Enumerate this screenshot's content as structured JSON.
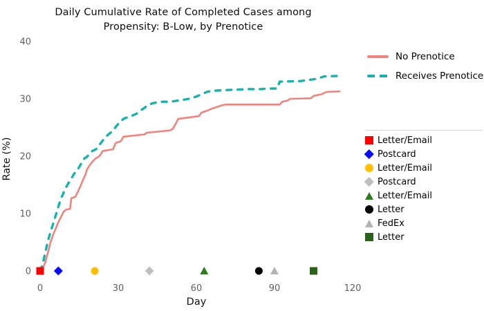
{
  "title": {
    "line1": "Daily Cumulative Rate of Completed Cases among",
    "line2": "Propensity: B-Low, by Prenotice"
  },
  "chart_data": {
    "type": "line",
    "title": "Daily Cumulative Rate of Completed Cases among Propensity: B-Low, by Prenotice",
    "xlabel": "Day",
    "ylabel": "Rate (%)",
    "xlim": [
      0,
      120
    ],
    "ylim": [
      0,
      40
    ],
    "x_ticks": [
      0,
      30,
      60,
      90,
      120
    ],
    "y_ticks": [
      0,
      10,
      20,
      30,
      40
    ],
    "grid": false,
    "legend_position": "right",
    "series": [
      {
        "name": "No Prenotice",
        "color": "#F2837C",
        "style": "solid",
        "points": [
          [
            0,
            0
          ],
          [
            1,
            0.4
          ],
          [
            2,
            1.5
          ],
          [
            3,
            3.2
          ],
          [
            4,
            5.0
          ],
          [
            5,
            6.3
          ],
          [
            6,
            7.4
          ],
          [
            7,
            8.5
          ],
          [
            8,
            9.4
          ],
          [
            9,
            10.3
          ],
          [
            10,
            10.7
          ],
          [
            11.5,
            10.8
          ],
          [
            12,
            12.7
          ],
          [
            13.5,
            12.9
          ],
          [
            14.5,
            13.8
          ],
          [
            15.5,
            14.8
          ],
          [
            16.5,
            15.9
          ],
          [
            17.5,
            16.9
          ],
          [
            18,
            17.7
          ],
          [
            19,
            18.4
          ],
          [
            20,
            19.0
          ],
          [
            21,
            19.5
          ],
          [
            22,
            19.8
          ],
          [
            23,
            20.1
          ],
          [
            24,
            20.9
          ],
          [
            28,
            21.2
          ],
          [
            29,
            22.3
          ],
          [
            31,
            22.6
          ],
          [
            32,
            23.4
          ],
          [
            40,
            23.8
          ],
          [
            41,
            24.1
          ],
          [
            50,
            24.5
          ],
          [
            51,
            24.8
          ],
          [
            52,
            25.6
          ],
          [
            53,
            26.5
          ],
          [
            61,
            27.0
          ],
          [
            62,
            27.6
          ],
          [
            64,
            27.9
          ],
          [
            66,
            28.3
          ],
          [
            68,
            28.6
          ],
          [
            70,
            28.9
          ],
          [
            71,
            29.0
          ],
          [
            92,
            29.0
          ],
          [
            93,
            29.5
          ],
          [
            95,
            29.7
          ],
          [
            96,
            30.0
          ],
          [
            104,
            30.1
          ],
          [
            105,
            30.5
          ],
          [
            108,
            30.8
          ],
          [
            109,
            31.0
          ],
          [
            110,
            31.2
          ],
          [
            115,
            31.3
          ]
        ]
      },
      {
        "name": "Receives Prenotice",
        "color": "#16B3AE",
        "style": "dashed",
        "points": [
          [
            0,
            0
          ],
          [
            1,
            1.2
          ],
          [
            2,
            3.2
          ],
          [
            3,
            5.2
          ],
          [
            4,
            6.8
          ],
          [
            5,
            8.2
          ],
          [
            6,
            9.7
          ],
          [
            7,
            11.2
          ],
          [
            8,
            12.6
          ],
          [
            9,
            13.6
          ],
          [
            10,
            14.6
          ],
          [
            11,
            15.4
          ],
          [
            12,
            16.1
          ],
          [
            13,
            16.9
          ],
          [
            14,
            17.4
          ],
          [
            15,
            18.1
          ],
          [
            16,
            18.9
          ],
          [
            17,
            19.6
          ],
          [
            18,
            19.9
          ],
          [
            19,
            20.4
          ],
          [
            20,
            20.9
          ],
          [
            21,
            21.1
          ],
          [
            22,
            21.4
          ],
          [
            23,
            22.1
          ],
          [
            24,
            22.7
          ],
          [
            25,
            23.3
          ],
          [
            26,
            23.7
          ],
          [
            27,
            24.1
          ],
          [
            28,
            24.4
          ],
          [
            29,
            25.1
          ],
          [
            30,
            25.6
          ],
          [
            31,
            26.1
          ],
          [
            32,
            26.5
          ],
          [
            33,
            26.7
          ],
          [
            35,
            27.0
          ],
          [
            37,
            27.4
          ],
          [
            38,
            27.8
          ],
          [
            39,
            28.1
          ],
          [
            40,
            28.4
          ],
          [
            41,
            28.8
          ],
          [
            42,
            29.0
          ],
          [
            43,
            29.2
          ],
          [
            45,
            29.4
          ],
          [
            47,
            29.5
          ],
          [
            50,
            29.5
          ],
          [
            53,
            29.7
          ],
          [
            56,
            29.9
          ],
          [
            58,
            30.1
          ],
          [
            60,
            30.4
          ],
          [
            61,
            30.6
          ],
          [
            62,
            30.8
          ],
          [
            63,
            31.0
          ],
          [
            64,
            31.2
          ],
          [
            66,
            31.4
          ],
          [
            70,
            31.5
          ],
          [
            75,
            31.6
          ],
          [
            80,
            31.7
          ],
          [
            85,
            31.7
          ],
          [
            87,
            31.8
          ],
          [
            91,
            31.8
          ],
          [
            92,
            33.0
          ],
          [
            100,
            33.1
          ],
          [
            103,
            33.3
          ],
          [
            105,
            33.4
          ],
          [
            107,
            33.6
          ],
          [
            109,
            33.9
          ],
          [
            115,
            34.0
          ]
        ]
      }
    ],
    "event_markers": [
      {
        "day": 0,
        "shape": "square",
        "color": "#FE0000",
        "label": "Letter/Email"
      },
      {
        "day": 7,
        "shape": "diamond",
        "color": "#0909FF",
        "label": "Postcard"
      },
      {
        "day": 21,
        "shape": "circle",
        "color": "#FFBE00",
        "label": "Letter/Email"
      },
      {
        "day": 42,
        "shape": "diamond",
        "color": "#BFBFBF",
        "label": "Postcard"
      },
      {
        "day": 63,
        "shape": "triangle",
        "color": "#2E7A1E",
        "label": "Letter/Email"
      },
      {
        "day": 84,
        "shape": "circle",
        "color": "#000000",
        "label": "Letter"
      },
      {
        "day": 90,
        "shape": "triangle",
        "color": "#B3B3B3",
        "label": "FedEx"
      },
      {
        "day": 105,
        "shape": "square",
        "color": "#2C611C",
        "label": "Letter"
      }
    ]
  },
  "colors": {
    "background": "#FFFFFF",
    "tick_label": "#606060",
    "axis_title": "#111111",
    "legend_border": "#D9D9D9",
    "no_prenotice": "#F2837C",
    "receives_prenotice": "#16B3AE"
  }
}
